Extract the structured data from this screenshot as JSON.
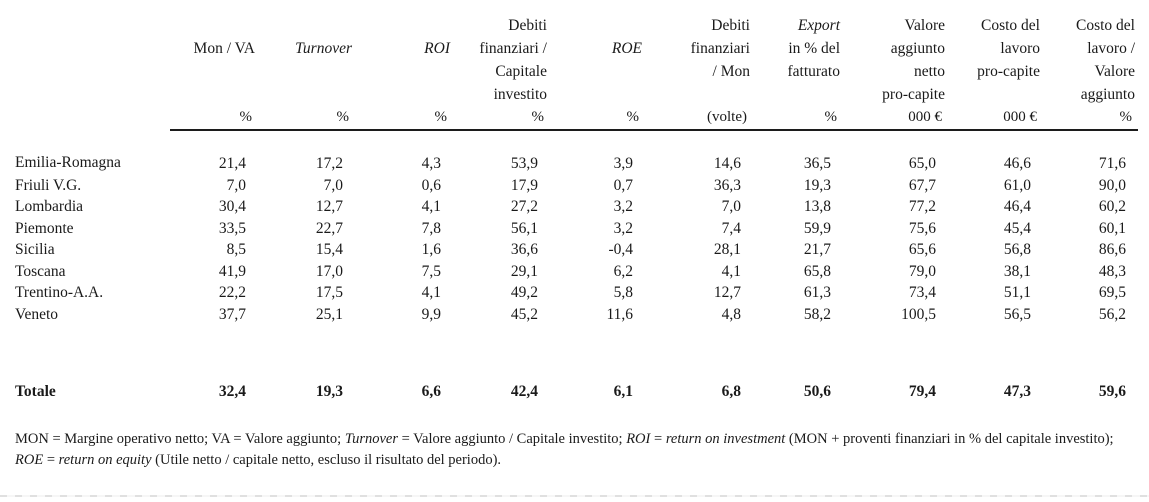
{
  "table": {
    "columns": [
      {
        "label": "\nMon / VA",
        "unit": "%",
        "style": "roman"
      },
      {
        "label": "\nTurnover",
        "unit": "%",
        "style": "italic"
      },
      {
        "label": "\nROI",
        "unit": "%",
        "style": "italic"
      },
      {
        "label": "Debiti\nfinanziari /\nCapitale\ninvestito",
        "unit": "%",
        "style": "roman"
      },
      {
        "label": "\nROE",
        "unit": "%",
        "style": "italic"
      },
      {
        "label": "Debiti\nfinanziari\n/ Mon",
        "unit": "(volte)",
        "style": "roman"
      },
      {
        "label": "Export\nin % del\nfatturato",
        "unit": "%",
        "style": "italic-first"
      },
      {
        "label": "Valore\naggiunto\nnetto\npro-capite",
        "unit": "000 €",
        "style": "roman"
      },
      {
        "label": "Costo del\nlavoro\npro-capite",
        "unit": "000 €",
        "style": "roman"
      },
      {
        "label": "Costo del\nlavoro /\nValore\naggiunto",
        "unit": "%",
        "style": "roman"
      }
    ],
    "rows": [
      {
        "label": "Emilia-Romagna",
        "values": [
          "21,4",
          "17,2",
          "4,3",
          "53,9",
          "3,9",
          "14,6",
          "36,5",
          "65,0",
          "46,6",
          "71,6"
        ]
      },
      {
        "label": "Friuli V.G.",
        "values": [
          "7,0",
          "7,0",
          "0,6",
          "17,9",
          "0,7",
          "36,3",
          "19,3",
          "67,7",
          "61,0",
          "90,0"
        ]
      },
      {
        "label": "Lombardia",
        "values": [
          "30,4",
          "12,7",
          "4,1",
          "27,2",
          "3,2",
          "7,0",
          "13,8",
          "77,2",
          "46,4",
          "60,2"
        ]
      },
      {
        "label": "Piemonte",
        "values": [
          "33,5",
          "22,7",
          "7,8",
          "56,1",
          "3,2",
          "7,4",
          "59,9",
          "75,6",
          "45,4",
          "60,1"
        ]
      },
      {
        "label": "Sicilia",
        "values": [
          "8,5",
          "15,4",
          "1,6",
          "36,6",
          "-0,4",
          "28,1",
          "21,7",
          "65,6",
          "56,8",
          "86,6"
        ]
      },
      {
        "label": "Toscana",
        "values": [
          "41,9",
          "17,0",
          "7,5",
          "29,1",
          "6,2",
          "4,1",
          "65,8",
          "79,0",
          "38,1",
          "48,3"
        ]
      },
      {
        "label": "Trentino-A.A.",
        "values": [
          "22,2",
          "17,5",
          "4,1",
          "49,2",
          "5,8",
          "12,7",
          "61,3",
          "73,4",
          "51,1",
          "69,5"
        ]
      },
      {
        "label": "Veneto",
        "values": [
          "37,7",
          "25,1",
          "9,9",
          "45,2",
          "11,6",
          "4,8",
          "58,2",
          "100,5",
          "56,5",
          "56,2"
        ]
      }
    ],
    "total_row": {
      "label": "Totale",
      "values": [
        "32,4",
        "19,3",
        "6,6",
        "42,4",
        "6,1",
        "6,8",
        "50,6",
        "79,4",
        "47,3",
        "59,6"
      ]
    }
  },
  "footnote": {
    "segments": [
      {
        "text": "MON = Margine operativo netto; VA = Valore aggiunto; ",
        "italic": false
      },
      {
        "text": "Turnover",
        "italic": true
      },
      {
        "text": " = Valore aggiunto / Capitale investito; ",
        "italic": false
      },
      {
        "text": "ROI",
        "italic": true
      },
      {
        "text": " = ",
        "italic": false
      },
      {
        "text": "return on investment",
        "italic": true
      },
      {
        "text": " (MON + proventi finanziari in % del capitale investito); ",
        "italic": false
      },
      {
        "text": "ROE",
        "italic": true
      },
      {
        "text": " = ",
        "italic": false
      },
      {
        "text": "return on equity",
        "italic": true
      },
      {
        "text": " (Utile netto / capitale netto, escluso il risultato del periodo).",
        "italic": false
      }
    ]
  }
}
